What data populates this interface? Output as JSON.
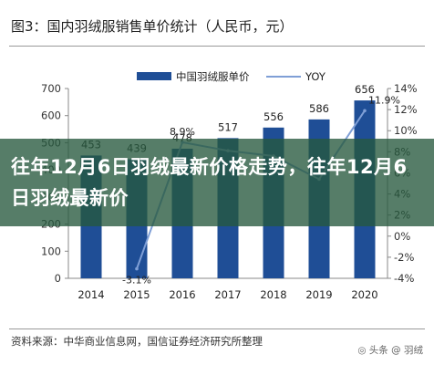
{
  "title": "图3：国内羽绒服销售单价统计（人民币，元）",
  "banner": "往年12月6日羽绒最新价格走势，往年12月6日羽绒最新价",
  "source": "资料来源：中华商业信息网，国信证券经济研究所整理",
  "watermark": "◎ 头条 @ 羽绒",
  "colors": {
    "bar": "#1f4e96",
    "line": "#7f9fd6",
    "banner": "#26583e"
  },
  "chart_data": {
    "type": "bar",
    "categories": [
      "2014",
      "2015",
      "2016",
      "2017",
      "2018",
      "2019",
      "2020"
    ],
    "series": [
      {
        "name": "中国羽绒服单价",
        "type": "bar",
        "axis": "left",
        "values": [
          453,
          439,
          478,
          517,
          556,
          586,
          656
        ],
        "labels": [
          "453",
          "439",
          "478",
          "517",
          "556",
          "586",
          "656"
        ]
      },
      {
        "name": "YOY",
        "type": "line",
        "axis": "right",
        "values": [
          null,
          -3.1,
          8.9,
          8.1,
          7.6,
          5.4,
          11.9
        ],
        "labels": [
          "",
          "-3.1%",
          "8.9%",
          "",
          "",
          "",
          "11.9%"
        ]
      }
    ],
    "yticks": [
      "0",
      "100",
      "200",
      "300",
      "400",
      "500",
      "600",
      "700"
    ],
    "y2ticks": [
      "-4%",
      "-2%",
      "0%",
      "2%",
      "4%",
      "6%",
      "8%",
      "10%",
      "12%",
      "14%"
    ],
    "ylim": [
      0,
      700
    ],
    "y2lim": [
      -4,
      14
    ],
    "legend": "top-center"
  }
}
